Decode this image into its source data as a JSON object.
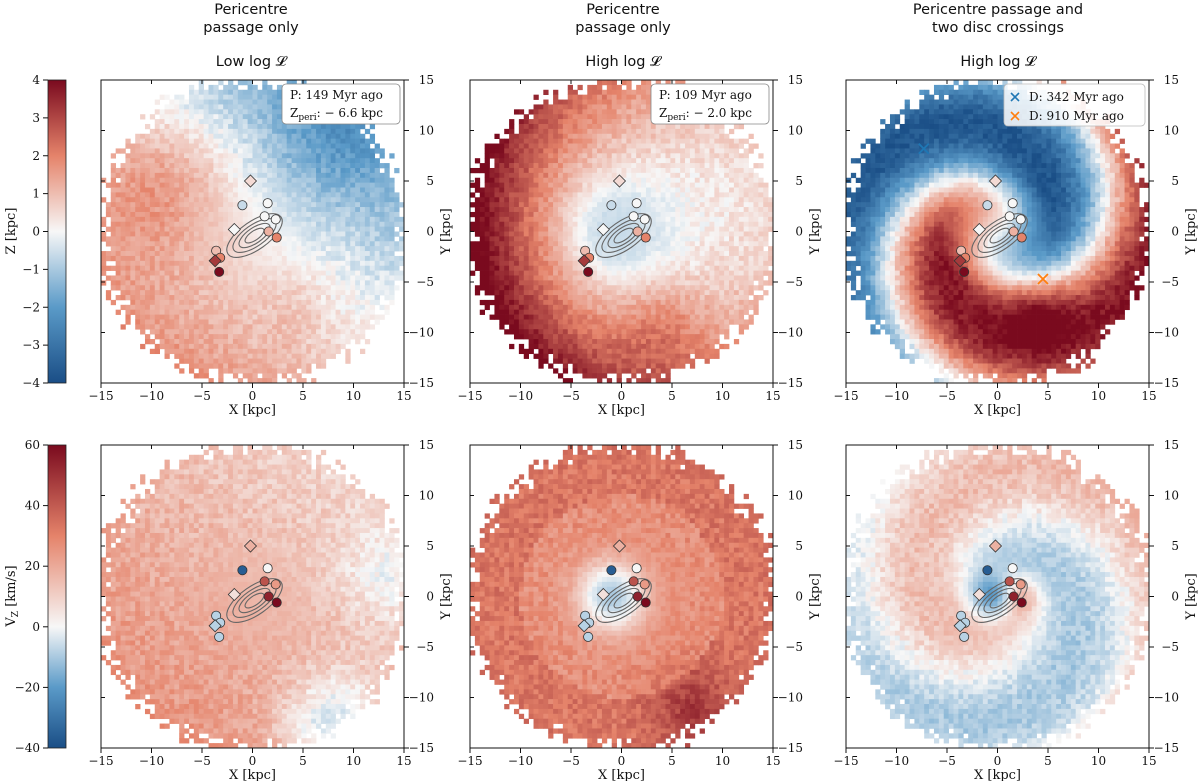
{
  "columns": [
    {
      "title": [
        "Pericentre",
        "passage only"
      ],
      "subtitle": "Low log 𝓛"
    },
    {
      "title": [
        "Pericentre",
        "passage only"
      ],
      "subtitle": "High log 𝓛"
    },
    {
      "title": [
        "Pericentre passage and",
        "two disc crossings"
      ],
      "subtitle": "High log 𝓛"
    }
  ],
  "colorbars": [
    {
      "label": "Z [kpc]",
      "ticks": [
        4,
        3,
        2,
        1,
        0,
        -1,
        -2,
        -3,
        -4
      ],
      "range": [
        -4,
        4
      ]
    },
    {
      "label": "V_Z [km/s]",
      "ticks": [
        60,
        40,
        20,
        0,
        -20,
        -40
      ],
      "range": [
        -40,
        60
      ]
    }
  ],
  "colors": {
    "red": "#7a0a1e",
    "white": "#f7f7f7",
    "blue": "#1a4e86",
    "contour": "#666666",
    "orange": "#ff7f0e",
    "cross_blue": "#1f77b4"
  },
  "chart_data": [
    {
      "type": "heatmap",
      "panel": "top-left",
      "xlabel": "X [kpc]",
      "ylabel": "Y [kpc]",
      "xlim": [
        -15,
        15
      ],
      "ylim": [
        -15,
        15
      ],
      "xticks": [
        -15,
        -10,
        -5,
        0,
        5,
        10,
        15
      ],
      "yticks": [
        -15,
        -10,
        -5,
        0,
        5,
        10,
        15
      ],
      "annotation": [
        "P: 149 Myr ago",
        "Z_peri: − 6.6 kpc"
      ],
      "field": "z_mild"
    },
    {
      "type": "heatmap",
      "panel": "top-middle",
      "xlabel": "X [kpc]",
      "ylabel": "Y [kpc]",
      "xlim": [
        -15,
        15
      ],
      "ylim": [
        -15,
        15
      ],
      "xticks": [
        -15,
        -10,
        -5,
        0,
        5,
        10,
        15
      ],
      "yticks": [
        -15,
        -10,
        -5,
        0,
        5,
        10,
        15
      ],
      "annotation": [
        "P: 109 Myr ago",
        "Z_peri: − 2.0 kpc"
      ],
      "field": "z_strong"
    },
    {
      "type": "heatmap",
      "panel": "top-right",
      "xlabel": "X [kpc]",
      "ylabel": "Y [kpc]",
      "xlim": [
        -15,
        15
      ],
      "ylim": [
        -15,
        15
      ],
      "xticks": [
        -15,
        -10,
        -5,
        0,
        5,
        10,
        15
      ],
      "yticks": [
        -15,
        -10,
        -5,
        0,
        5,
        10,
        15
      ],
      "legend": [
        {
          "label": "D: 342 Myr ago",
          "x": -7.3,
          "y": 8.2,
          "color": "#1f77b4"
        },
        {
          "label": "D: 910 Myr ago",
          "x": 4.5,
          "y": -4.7,
          "color": "#ff7f0e"
        }
      ],
      "field": "z_spiral"
    },
    {
      "type": "heatmap",
      "panel": "bottom-left",
      "xlabel": "X [kpc]",
      "ylabel": "Y [kpc]",
      "xlim": [
        -15,
        15
      ],
      "ylim": [
        -15,
        15
      ],
      "xticks": [
        -15,
        -10,
        -5,
        0,
        5,
        10,
        15
      ],
      "yticks": [
        -15,
        -10,
        -5,
        0,
        5,
        10,
        15
      ],
      "field": "v_mild"
    },
    {
      "type": "heatmap",
      "panel": "bottom-middle",
      "xlabel": "X [kpc]",
      "ylabel": "Y [kpc]",
      "xlim": [
        -15,
        15
      ],
      "ylim": [
        -15,
        15
      ],
      "xticks": [
        -15,
        -10,
        -5,
        0,
        5,
        10,
        15
      ],
      "yticks": [
        -15,
        -10,
        -5,
        0,
        5,
        10,
        15
      ],
      "field": "v_strong"
    },
    {
      "type": "heatmap",
      "panel": "bottom-right",
      "xlabel": "X [kpc]",
      "ylabel": "Y [kpc]",
      "xlim": [
        -15,
        15
      ],
      "ylim": [
        -15,
        15
      ],
      "xticks": [
        -15,
        -10,
        -5,
        0,
        5,
        10,
        15
      ],
      "yticks": [
        -15,
        -10,
        -5,
        0,
        5,
        10,
        15
      ],
      "field": "v_spiral"
    }
  ],
  "markers_top": [
    {
      "shape": "diamond",
      "x": -0.2,
      "y": 5.0,
      "v": 0.5
    },
    {
      "shape": "circle",
      "x": -1.0,
      "y": 2.6,
      "v": -0.6
    },
    {
      "shape": "circle",
      "x": 1.5,
      "y": 2.8,
      "v": 0.0
    },
    {
      "shape": "circle",
      "x": 1.2,
      "y": 1.5,
      "v": 0.0
    },
    {
      "shape": "circle",
      "x": 2.3,
      "y": 1.2,
      "v": 0.0
    },
    {
      "shape": "diamond",
      "x": -1.8,
      "y": 0.2,
      "v": 0.0
    },
    {
      "shape": "circle",
      "x": 1.6,
      "y": 0.0,
      "v": 1.2
    },
    {
      "shape": "circle",
      "x": 2.4,
      "y": -0.6,
      "v": 2.0
    },
    {
      "shape": "circle",
      "x": -3.6,
      "y": -1.9,
      "v": 1.0
    },
    {
      "shape": "circle",
      "x": -3.2,
      "y": -2.6,
      "v": 2.0
    },
    {
      "shape": "diamond",
      "x": -3.7,
      "y": -2.9,
      "v": 3.2
    },
    {
      "shape": "circle",
      "x": -3.3,
      "y": -4.0,
      "v": 4.0
    }
  ],
  "markers_bottom": [
    {
      "shape": "diamond",
      "x": -0.2,
      "y": 5.0,
      "v": 25
    },
    {
      "shape": "circle",
      "x": -1.0,
      "y": 2.6,
      "v": -35
    },
    {
      "shape": "circle",
      "x": 1.5,
      "y": 2.8,
      "v": 10
    },
    {
      "shape": "circle",
      "x": 1.2,
      "y": 1.5,
      "v": 45
    },
    {
      "shape": "circle",
      "x": 2.3,
      "y": 1.2,
      "v": 30
    },
    {
      "shape": "diamond",
      "x": -1.8,
      "y": 0.2,
      "v": 15
    },
    {
      "shape": "circle",
      "x": 1.6,
      "y": 0.0,
      "v": 55
    },
    {
      "shape": "circle",
      "x": 2.4,
      "y": -0.6,
      "v": 60
    },
    {
      "shape": "circle",
      "x": -3.6,
      "y": -1.9,
      "v": 0
    },
    {
      "shape": "circle",
      "x": -3.2,
      "y": -2.6,
      "v": 0
    },
    {
      "shape": "diamond",
      "x": -3.7,
      "y": -2.9,
      "v": 0
    },
    {
      "shape": "circle",
      "x": -3.3,
      "y": -4.0,
      "v": 0
    }
  ]
}
